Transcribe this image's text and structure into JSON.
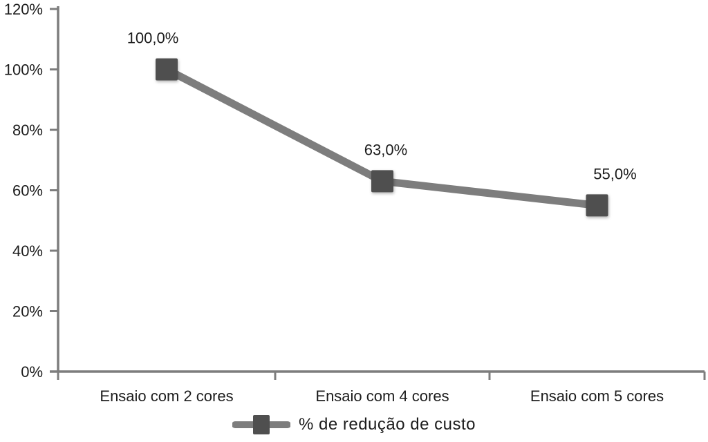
{
  "chart_data": {
    "type": "line",
    "categories": [
      "Ensaio com 2 cores",
      "Ensaio com 4 cores",
      "Ensaio com 5 cores"
    ],
    "values": [
      100,
      63,
      55
    ],
    "point_labels": [
      "100,0%",
      "63,0%",
      "55,0%"
    ],
    "ytick_values": [
      0,
      20,
      40,
      60,
      80,
      100,
      120
    ],
    "ytick_labels": [
      "0%",
      "20%",
      "40%",
      "60%",
      "80%",
      "100%",
      "120%"
    ],
    "ylim": [
      0,
      120
    ],
    "xlabel": "",
    "ylabel": "",
    "title": "",
    "grid": false,
    "legend_position": "bottom-center",
    "legend": {
      "label": "% de redução de custo"
    },
    "colors": {
      "line": "#7d7d7d",
      "marker": "#4f4f4f",
      "axis": "#7d7d7d",
      "text": "#1c1c1c"
    }
  }
}
